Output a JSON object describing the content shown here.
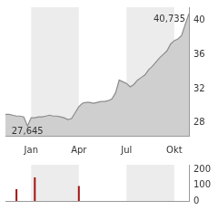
{
  "chart_data": [
    {
      "type": "line",
      "categories": [
        null,
        null,
        null,
        null,
        null,
        null,
        null,
        "Jan",
        null,
        null,
        null,
        null,
        null,
        null,
        null,
        null,
        null,
        null,
        null,
        null,
        "Apr",
        null,
        null,
        null,
        null,
        null,
        null,
        null,
        null,
        null,
        null,
        null,
        null,
        "Jul",
        null,
        null,
        null,
        null,
        null,
        null,
        null,
        null,
        null,
        null,
        null,
        null,
        "Okt",
        null,
        null,
        null,
        null
      ],
      "values": [
        29.0,
        29.0,
        28.9,
        28.8,
        28.8,
        28.7,
        27.645,
        28.6,
        28.6,
        28.7,
        28.7,
        28.8,
        28.9,
        28.8,
        28.8,
        28.7,
        28.6,
        28.4,
        28.5,
        29.2,
        29.9,
        30.3,
        30.4,
        30.4,
        30.3,
        30.4,
        30.5,
        30.5,
        30.6,
        30.8,
        31.5,
        33.0,
        32.8,
        32.6,
        32.2,
        32.5,
        33.0,
        33.3,
        33.6,
        34.2,
        34.6,
        35.1,
        35.6,
        36.0,
        36.4,
        37.2,
        37.6,
        37.8,
        38.2,
        39.5,
        40.735
      ],
      "color": "#8c8c8c",
      "ylim": [
        26.5,
        41.5
      ],
      "yticks": [
        28,
        32,
        36,
        40
      ],
      "grid": false,
      "annotations": [
        {
          "value": 40.735,
          "label": "40,735"
        },
        {
          "value": 27.645,
          "label": "27,645"
        }
      ]
    },
    {
      "type": "bar",
      "categories": [
        null,
        null,
        null,
        null,
        null,
        null,
        null,
        "Jan",
        null,
        null,
        null,
        null,
        null,
        null,
        null,
        null,
        null,
        null,
        null,
        null,
        "Apr",
        null,
        null,
        null,
        null,
        null,
        null,
        null,
        null,
        null,
        null,
        null,
        null,
        "Jul",
        null,
        null,
        null,
        null,
        null,
        null,
        null,
        null,
        null,
        null,
        null,
        null,
        "Okt",
        null,
        null,
        null,
        null
      ],
      "values": [
        0,
        0,
        0,
        75,
        0,
        0,
        0,
        0,
        150,
        0,
        0,
        0,
        0,
        0,
        0,
        0,
        0,
        0,
        0,
        0,
        95,
        0,
        0,
        0,
        0,
        0,
        0,
        0,
        0,
        0,
        0,
        0,
        0,
        0,
        0,
        0,
        0,
        0,
        0,
        0,
        0,
        0,
        0,
        0,
        0,
        0,
        0,
        0,
        0,
        0,
        0
      ],
      "color": "#a31515",
      "ylim": [
        0,
        230
      ],
      "yticks": [
        0,
        100,
        200
      ],
      "grid": false,
      "tick_labels": "y"
    }
  ]
}
